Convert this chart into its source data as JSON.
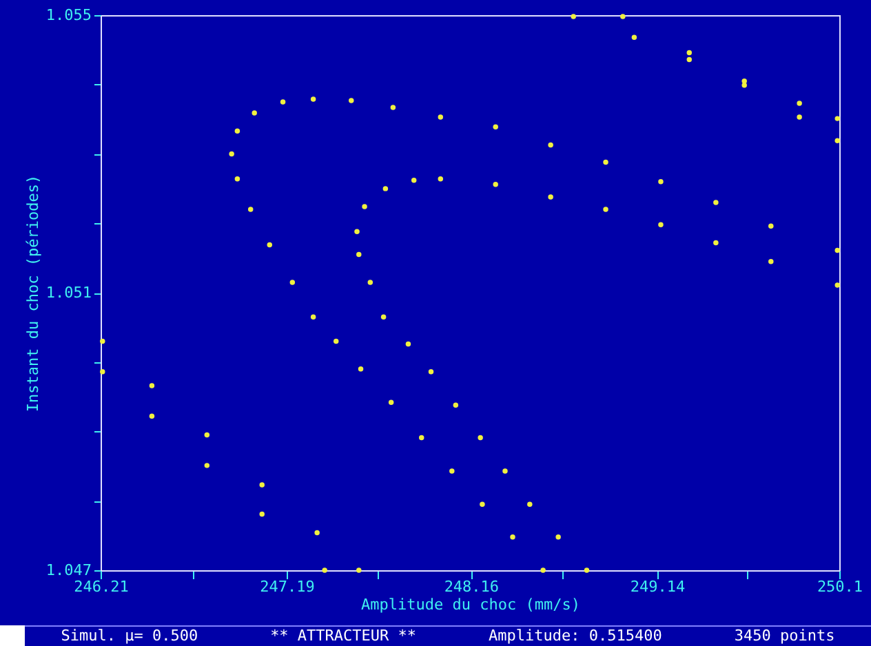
{
  "chart_data": {
    "type": "scatter",
    "xlabel": "Amplitude du choc (mm/s)",
    "ylabel": "Instant du choc (périodes)",
    "xlim": [
      246.21,
      250.1
    ],
    "ylim": [
      1.047,
      1.055
    ],
    "xticks": [
      {
        "value": 246.21,
        "label": "246.21"
      },
      {
        "value": 246.696,
        "label": null
      },
      {
        "value": 247.19,
        "label": "247.19"
      },
      {
        "value": 247.669,
        "label": null
      },
      {
        "value": 248.16,
        "label": "248.16"
      },
      {
        "value": 248.641,
        "label": null
      },
      {
        "value": 249.14,
        "label": "249.14"
      },
      {
        "value": 249.614,
        "label": null
      },
      {
        "value": 250.1,
        "label": "250.1"
      }
    ],
    "yticks": [
      {
        "value": 1.047,
        "label": "1.047"
      },
      {
        "value": 1.048,
        "label": null
      },
      {
        "value": 1.049,
        "label": null
      },
      {
        "value": 1.05,
        "label": null
      },
      {
        "value": 1.051,
        "label": "1.051"
      },
      {
        "value": 1.052,
        "label": null
      },
      {
        "value": 1.053,
        "label": null
      },
      {
        "value": 1.054,
        "label": null
      },
      {
        "value": 1.055,
        "label": "1.055"
      }
    ],
    "grid": false,
    "marker": "circle",
    "annotations": [
      "Simul. μ= 0.500",
      "** ATTRACTEUR **",
      "Amplitude: 0.515400",
      "3450 points"
    ],
    "series": [
      {
        "color": "#f0f040",
        "x": [
          248.54,
          248.38,
          248.22,
          248.06,
          247.9,
          247.74,
          247.58,
          247.45,
          247.33,
          247.22,
          247.1,
          247.0,
          246.93,
          246.9,
          246.93,
          247.02,
          247.17,
          247.33,
          247.53,
          247.75,
          248.0,
          248.29,
          248.58,
          248.87,
          249.16,
          249.45,
          249.74,
          250.09
        ],
        "values": [
          1.047,
          1.04748,
          1.04795,
          1.04843,
          1.04891,
          1.04942,
          1.0499,
          1.0503,
          1.05065,
          1.05115,
          1.05169,
          1.0522,
          1.05264,
          1.053,
          1.05333,
          1.05359,
          1.05375,
          1.05379,
          1.05377,
          1.05367,
          1.05353,
          1.05339,
          1.05313,
          1.05288,
          1.0526,
          1.0523,
          1.05196,
          1.05161
        ]
      },
      {
        "color": "#f0f040",
        "x": [
          248.77,
          248.62,
          248.47,
          248.34,
          248.21,
          248.08,
          247.95,
          247.83,
          247.7,
          247.63,
          247.57,
          247.56,
          247.6,
          247.71,
          247.86,
          248.0,
          248.29,
          248.58,
          248.87,
          249.16,
          249.45,
          249.74,
          250.09
        ],
        "values": [
          1.047,
          1.04748,
          1.04795,
          1.04843,
          1.04891,
          1.04938,
          1.04986,
          1.05026,
          1.05065,
          1.05115,
          1.05155,
          1.05188,
          1.05224,
          1.0525,
          1.05262,
          1.05264,
          1.05256,
          1.05238,
          1.0522,
          1.05198,
          1.05172,
          1.05145,
          1.05111
        ]
      },
      {
        "color": "#f0f040",
        "x": [
          248.7,
          249.02,
          249.31,
          249.6,
          249.89,
          250.09
        ],
        "values": [
          1.05498,
          1.05468,
          1.05436,
          1.05405,
          1.05373,
          1.05351
        ]
      },
      {
        "color": "#f0f040",
        "x": [
          248.96,
          249.31,
          249.6,
          249.89,
          250.09
        ],
        "values": [
          1.05498,
          1.05446,
          1.05399,
          1.05353,
          1.05319
        ]
      },
      {
        "color": "#f0f040",
        "x": [
          246.22,
          246.48,
          246.77,
          247.06,
          247.35,
          247.57
        ],
        "values": [
          1.0503,
          1.04966,
          1.04895,
          1.04823,
          1.04754,
          1.047
        ]
      },
      {
        "color": "#f0f040",
        "x": [
          246.22,
          246.48,
          246.77,
          247.06,
          247.39
        ],
        "values": [
          1.04986,
          1.04922,
          1.04851,
          1.04781,
          1.047
        ]
      }
    ]
  }
}
